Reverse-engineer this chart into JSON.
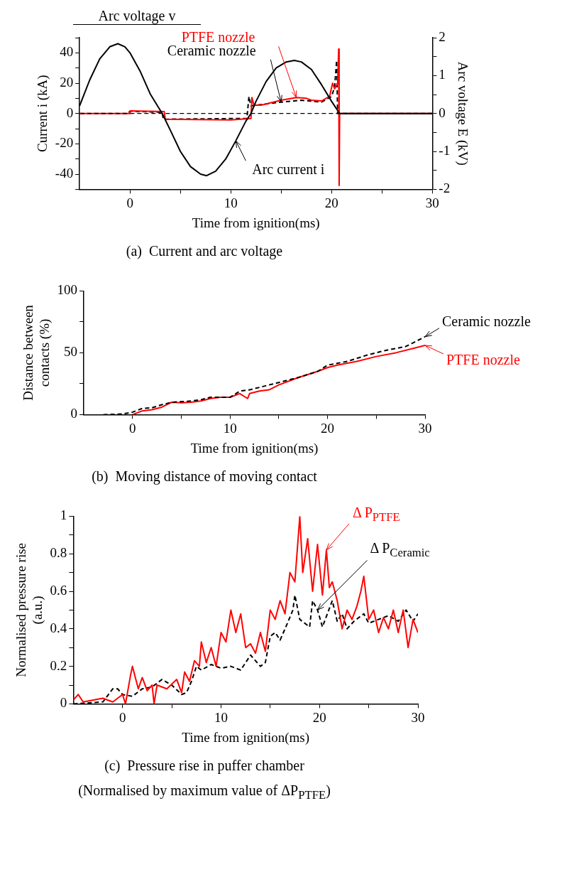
{
  "chart_data": [
    {
      "type": "line",
      "title": "(a)  Current and arc voltage",
      "legend_title": "Arc voltage v",
      "xlabel": "Time from ignition(ms)",
      "ylabel": "Current i (kA)",
      "y2label": "Arc voltage E (kV)",
      "xlim": [
        -5,
        30
      ],
      "xticks": [
        0,
        {
          "value": 5,
          "label": null
        },
        10,
        {
          "value": 15,
          "label": null
        },
        20,
        {
          "value": 25,
          "label": null
        },
        30
      ],
      "ylim": [
        -50,
        50
      ],
      "yticks": [
        {
          "value": -50,
          "label": null
        },
        -40,
        {
          "value": -30,
          "label": null
        },
        -20,
        {
          "value": -10,
          "label": null
        },
        0,
        {
          "value": 10,
          "label": null
        },
        20,
        {
          "value": 30,
          "label": null
        },
        40,
        {
          "value": 50,
          "label": null
        }
      ],
      "y2lim": [
        -2,
        2
      ],
      "y2ticks": [
        -2,
        {
          "value": -1.5,
          "label": null
        },
        -1,
        {
          "value": -0.5,
          "label": null
        },
        0,
        {
          "value": 0.5,
          "label": null
        },
        1,
        {
          "value": 1.5,
          "label": null
        },
        2
      ],
      "ref_lines": [
        {
          "axis": "y2",
          "value": 0,
          "color": "#000000",
          "line_style": "dashed"
        }
      ],
      "series": [
        {
          "name": "Arc current i",
          "color": "#000000",
          "line_style": "solid",
          "x": [
            -5,
            -4,
            -3,
            -2,
            -1.2,
            -0.5,
            0,
            1,
            2,
            3.2,
            4,
            5,
            6,
            7,
            7.6,
            8.5,
            9.5,
            10.5,
            11.5,
            12,
            12.5,
            13.5,
            14.5,
            15.5,
            16.3,
            17,
            18,
            19,
            20,
            20.8,
            30
          ],
          "values": [
            5,
            22,
            36,
            44,
            46,
            44,
            40,
            28,
            13,
            0,
            -11,
            -25,
            -35,
            -40,
            -41,
            -38,
            -30,
            -18,
            -5,
            0,
            8,
            21,
            30,
            34,
            35,
            34,
            29,
            19,
            8,
            0,
            0
          ]
        },
        {
          "name": "PTFE nozzle",
          "color": "#ff0000",
          "line_style": "solid",
          "axis": "y2",
          "x": [
            -5,
            0,
            0.01,
            3.4,
            3.5,
            10,
            12,
            12.1,
            12.3,
            13,
            15,
            16.5,
            17.5,
            18,
            19,
            19.8,
            20.1,
            20.3,
            20.6,
            20.7,
            20.75,
            20.8,
            30
          ],
          "values": [
            0,
            0,
            0.07,
            0.05,
            -0.15,
            -0.17,
            -0.13,
            0.42,
            0.22,
            0.22,
            0.35,
            0.42,
            0.4,
            0.35,
            0.33,
            0.45,
            0.8,
            0.65,
            0.8,
            1.7,
            -1.9,
            0,
            0
          ]
        },
        {
          "name": "Ceramic nozzle",
          "color": "#000000",
          "line_style": "dashed",
          "axis": "y2",
          "x": [
            -5,
            -0.2,
            0,
            3.2,
            3.3,
            11.6,
            11.8,
            12,
            15,
            17,
            19,
            20,
            20.3,
            20.5,
            20.6,
            30
          ],
          "values": [
            0,
            0,
            0.06,
            0.03,
            -0.15,
            -0.13,
            0.45,
            0.2,
            0.3,
            0.35,
            0.3,
            0.45,
            0.7,
            1.4,
            0,
            0
          ]
        }
      ]
    },
    {
      "type": "line",
      "title": "(b)  Moving distance of moving contact",
      "xlabel": "Time from ignition(ms)",
      "ylabel": "Distance between contacts (%)",
      "xlim": [
        -5,
        30
      ],
      "xticks": [
        0,
        {
          "value": 5,
          "label": null
        },
        10,
        {
          "value": 15,
          "label": null
        },
        20,
        {
          "value": 25,
          "label": null
        },
        30
      ],
      "ylim": [
        0,
        100
      ],
      "yticks": [
        0,
        {
          "value": 25,
          "label": null
        },
        50,
        {
          "value": 75,
          "label": null
        },
        100
      ],
      "series": [
        {
          "name": "Ceramic nozzle",
          "color": "#000000",
          "line_style": "dashed",
          "x": [
            -3,
            -1,
            0,
            1,
            2,
            3,
            4,
            6,
            7,
            8,
            10,
            11,
            12,
            13,
            15,
            17,
            19,
            20,
            22,
            24,
            26,
            28,
            30
          ],
          "values": [
            0,
            0.5,
            2,
            5,
            5.5,
            8,
            10,
            11,
            12,
            14,
            14,
            19,
            20,
            22,
            26,
            30,
            35,
            40,
            43,
            48,
            52,
            55,
            63
          ]
        },
        {
          "name": "PTFE nozzle",
          "color": "#ff0000",
          "line_style": "solid",
          "x": [
            0,
            1,
            2,
            3,
            4,
            5,
            6,
            7,
            8,
            9,
            10,
            11,
            11.8,
            12,
            13,
            14,
            15,
            17,
            19,
            20,
            21,
            23,
            25,
            27,
            29,
            30
          ],
          "values": [
            0,
            3,
            4,
            6,
            10,
            9.5,
            10,
            11,
            13,
            14,
            14,
            17,
            13,
            17,
            19,
            20,
            24,
            30,
            35,
            38,
            40,
            43,
            47,
            50,
            54,
            56
          ]
        }
      ]
    },
    {
      "type": "line",
      "title": "(c)  Pressure rise in puffer chamber",
      "annotations": [
        "(Normalised by maximum value of ΔP$_{PTFE}$)"
      ],
      "xlabel": "Time from ignition(ms)",
      "ylabel": "Normalised pressure rise (a.u.)",
      "xlim": [
        -5,
        30
      ],
      "xticks": [
        0,
        {
          "value": 5,
          "label": null
        },
        10,
        {
          "value": 15,
          "label": null
        },
        20,
        {
          "value": 25,
          "label": null
        },
        30
      ],
      "ylim": [
        0,
        1
      ],
      "yticks": [
        0,
        {
          "value": 0.1,
          "label": null
        },
        0.2,
        {
          "value": 0.3,
          "label": null
        },
        0.4,
        {
          "value": 0.5,
          "label": null
        },
        0.6,
        {
          "value": 0.7,
          "label": null
        },
        0.8,
        {
          "value": 0.9,
          "label": null
        },
        1
      ],
      "series": [
        {
          "name": "Δ P$_{PTFE}$",
          "color": "#ff0000",
          "line_style": "solid",
          "x": [
            -5,
            -4.5,
            -4,
            -2,
            -1,
            0,
            0.3,
            0.8,
            1,
            1.3,
            1.6,
            2,
            2.5,
            3,
            3.2,
            3.5,
            4.5,
            5.5,
            6,
            6.3,
            6.8,
            7.3,
            7.8,
            8,
            8.5,
            9,
            9.5,
            10,
            10.5,
            11,
            11.5,
            12,
            12.5,
            13,
            13.5,
            14,
            14.5,
            15,
            15.5,
            16,
            16.5,
            17,
            17.5,
            18,
            18.3,
            18.8,
            19.3,
            19.8,
            20.3,
            20.7,
            21,
            21.3,
            21.8,
            22.3,
            22.8,
            23.3,
            23.8,
            24.2,
            24.5,
            25,
            25.5,
            26,
            26.5,
            27,
            27.5,
            28,
            28.5,
            29,
            29.5,
            30
          ],
          "values": [
            0.02,
            0.05,
            0.01,
            0.03,
            0.01,
            0.05,
            0,
            0.15,
            0.2,
            0.14,
            0.08,
            0.14,
            0.07,
            0.1,
            0,
            0.1,
            0.08,
            0.13,
            0.06,
            0.17,
            0.12,
            0.23,
            0.2,
            0.33,
            0.22,
            0.3,
            0.2,
            0.38,
            0.33,
            0.5,
            0.38,
            0.48,
            0.3,
            0.32,
            0.27,
            0.38,
            0.28,
            0.5,
            0.45,
            0.55,
            0.48,
            0.7,
            0.65,
            1,
            0.7,
            0.88,
            0.6,
            0.85,
            0.58,
            0.82,
            0.62,
            0.65,
            0.55,
            0.4,
            0.5,
            0.45,
            0.52,
            0.6,
            0.68,
            0.45,
            0.5,
            0.38,
            0.46,
            0.4,
            0.5,
            0.38,
            0.5,
            0.3,
            0.45,
            0.38
          ]
        },
        {
          "name": "Δ P$_{Ceramic}$",
          "color": "#000000",
          "line_style": "dashed",
          "x": [
            -5,
            -2,
            -1,
            -0.5,
            0,
            1,
            2,
            3,
            4,
            5,
            6,
            6.5,
            7,
            7.5,
            8,
            9,
            10,
            11,
            12,
            13,
            14,
            14.5,
            15,
            15.5,
            16,
            16.5,
            17.3,
            17.5,
            18,
            18.5,
            19,
            19.3,
            19.8,
            20.3,
            21.3,
            21.8,
            22.3,
            22.8,
            23.5,
            24.5,
            25,
            26,
            27,
            28,
            28.8,
            29.5,
            30
          ],
          "values": [
            0,
            0.01,
            0.08,
            0.08,
            0.05,
            0.04,
            0.08,
            0.09,
            0.13,
            0.1,
            0.05,
            0.06,
            0.12,
            0.2,
            0.18,
            0.21,
            0.19,
            0.2,
            0.18,
            0.26,
            0.2,
            0.22,
            0.36,
            0.38,
            0.34,
            0.4,
            0.5,
            0.58,
            0.45,
            0.43,
            0.41,
            0.55,
            0.5,
            0.41,
            0.55,
            0.44,
            0.48,
            0.4,
            0.44,
            0.48,
            0.43,
            0.45,
            0.47,
            0.44,
            0.5,
            0.44,
            0.48
          ]
        }
      ]
    }
  ]
}
